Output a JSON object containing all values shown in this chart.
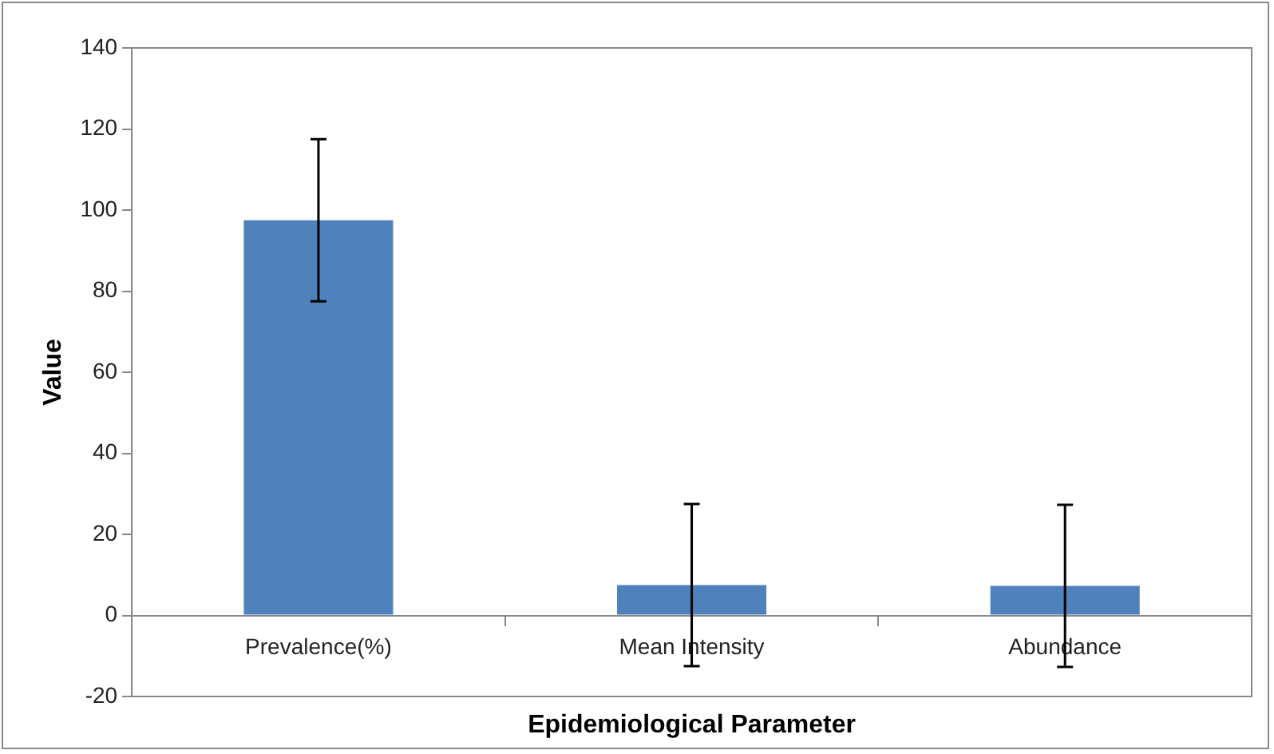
{
  "chart_data": {
    "type": "bar",
    "xlabel": "Epidemiological Parameter",
    "ylabel": "Value",
    "categories": [
      "Prevalence(%)",
      "Mean Intensity",
      "Abundance"
    ],
    "values": [
      97.5,
      7.5,
      7.3
    ],
    "color": "#4f81bd",
    "errors": [
      20,
      20,
      20
    ],
    "ylim": [
      -20,
      140
    ],
    "yticks": [
      -20,
      0,
      20,
      40,
      60,
      80,
      100,
      120,
      140
    ],
    "grid": false,
    "legend": false
  }
}
